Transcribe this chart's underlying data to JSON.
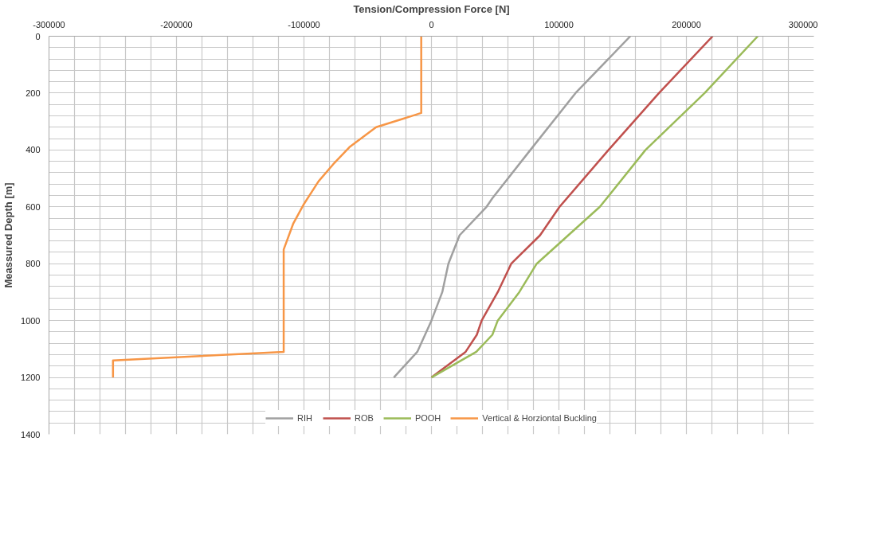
{
  "chart_data": {
    "type": "line",
    "xlabel": "Tension/Compression Force [N]",
    "ylabel": "Meassured Depth [m]",
    "xlim": [
      -300000,
      300000
    ],
    "ylim": [
      1400,
      0
    ],
    "xticks": [
      -300000,
      {
        "value": -280000,
        "label": null
      },
      {
        "value": -260000,
        "label": null
      },
      {
        "value": -240000,
        "label": null
      },
      {
        "value": -220000,
        "label": null
      },
      -200000,
      {
        "value": -180000,
        "label": null
      },
      {
        "value": -160000,
        "label": null
      },
      {
        "value": -140000,
        "label": null
      },
      {
        "value": -120000,
        "label": null
      },
      -100000,
      {
        "value": -80000,
        "label": null
      },
      {
        "value": -60000,
        "label": null
      },
      {
        "value": -40000,
        "label": null
      },
      {
        "value": -20000,
        "label": null
      },
      0,
      {
        "value": 20000,
        "label": null
      },
      {
        "value": 40000,
        "label": null
      },
      {
        "value": 60000,
        "label": null
      },
      {
        "value": 80000,
        "label": null
      },
      100000,
      {
        "value": 120000,
        "label": null
      },
      {
        "value": 140000,
        "label": null
      },
      {
        "value": 160000,
        "label": null
      },
      {
        "value": 180000,
        "label": null
      },
      200000,
      {
        "value": 220000,
        "label": null
      },
      {
        "value": 240000,
        "label": null
      },
      {
        "value": 260000,
        "label": null
      },
      {
        "value": 280000,
        "label": null
      },
      300000
    ],
    "yticks": [
      0,
      {
        "value": 40,
        "label": null
      },
      {
        "value": 80,
        "label": null
      },
      {
        "value": 120,
        "label": null
      },
      {
        "value": 160,
        "label": null
      },
      200,
      {
        "value": 240,
        "label": null
      },
      {
        "value": 280,
        "label": null
      },
      {
        "value": 320,
        "label": null
      },
      {
        "value": 360,
        "label": null
      },
      400,
      {
        "value": 440,
        "label": null
      },
      {
        "value": 480,
        "label": null
      },
      {
        "value": 520,
        "label": null
      },
      {
        "value": 560,
        "label": null
      },
      600,
      {
        "value": 640,
        "label": null
      },
      {
        "value": 680,
        "label": null
      },
      {
        "value": 720,
        "label": null
      },
      {
        "value": 760,
        "label": null
      },
      800,
      {
        "value": 840,
        "label": null
      },
      {
        "value": 880,
        "label": null
      },
      {
        "value": 920,
        "label": null
      },
      {
        "value": 960,
        "label": null
      },
      1000,
      {
        "value": 1040,
        "label": null
      },
      {
        "value": 1080,
        "label": null
      },
      {
        "value": 1120,
        "label": null
      },
      {
        "value": 1160,
        "label": null
      },
      1200,
      {
        "value": 1240,
        "label": null
      },
      {
        "value": 1280,
        "label": null
      },
      {
        "value": 1320,
        "label": null
      },
      {
        "value": 1360,
        "label": null
      },
      1400
    ],
    "grid": true,
    "legend": "bottom",
    "marker": "none",
    "line_style": "solid",
    "series": [
      {
        "name": "RIH",
        "color": "#a0a0a0",
        "x": [
          156000,
          113000,
          77600,
          47800,
          43200,
          22100,
          13300,
          8500,
          0,
          -11100,
          -29500
        ],
        "values": [
          0,
          200,
          400,
          570,
          600,
          700,
          800,
          900,
          1000,
          1110,
          1200
        ]
      },
      {
        "name": "ROB",
        "color": "#c0504d",
        "x": [
          220600,
          178500,
          138900,
          100500,
          85200,
          62600,
          52000,
          39400,
          35600,
          26800,
          0
        ],
        "values": [
          0,
          200,
          400,
          600,
          700,
          800,
          900,
          1000,
          1050,
          1110,
          1200
        ]
      },
      {
        "name": "POOH",
        "color": "#9bbb59",
        "x": [
          256000,
          214300,
          167900,
          132100,
          82600,
          68900,
          52000,
          47800,
          35200,
          0
        ],
        "values": [
          0,
          200,
          400,
          600,
          800,
          900,
          1000,
          1050,
          1110,
          1200
        ]
      },
      {
        "name": "Vertical & Horziontal Buckling",
        "color": "#f79646",
        "x": [
          -8000,
          -8000,
          -43400,
          -64300,
          -77000,
          -88500,
          -100000,
          -108500,
          -115900,
          -115900,
          -249800,
          -249800
        ],
        "values": [
          0,
          270,
          320,
          390,
          450,
          510,
          590,
          660,
          750,
          1110,
          1140,
          1200
        ]
      }
    ]
  }
}
